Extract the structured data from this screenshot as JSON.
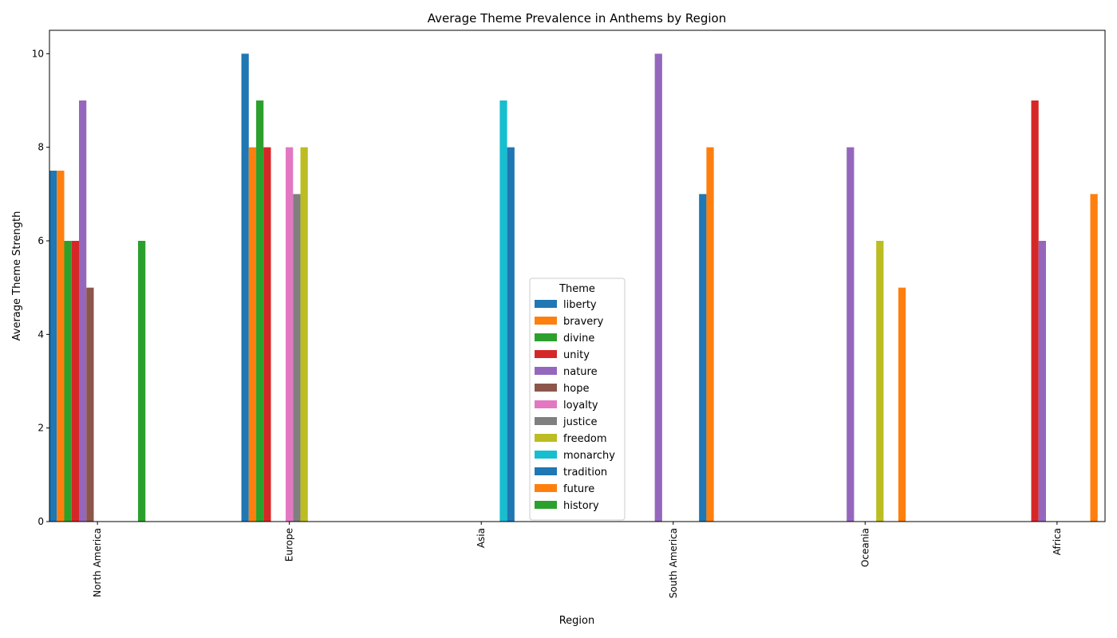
{
  "chart_data": {
    "type": "bar",
    "title": "Average Theme Prevalence in Anthems by Region",
    "xlabel": "Region",
    "ylabel": "Average Theme Strength",
    "categories": [
      "North America",
      "Europe",
      "Asia",
      "South America",
      "Oceania",
      "Africa"
    ],
    "yticks": [
      "0",
      "2",
      "4",
      "6",
      "8",
      "10"
    ],
    "ylim": [
      0,
      10.5
    ],
    "grid": false,
    "legend": {
      "title": "Theme",
      "placement": "center"
    },
    "series": [
      {
        "name": "liberty",
        "color": "#1f77b4",
        "values": [
          7.5,
          10,
          0,
          0,
          0,
          0
        ]
      },
      {
        "name": "bravery",
        "color": "#ff7f0e",
        "values": [
          7.5,
          8,
          0,
          0,
          0,
          0
        ]
      },
      {
        "name": "divine",
        "color": "#2ca02c",
        "values": [
          6,
          9,
          0,
          0,
          0,
          0
        ]
      },
      {
        "name": "unity",
        "color": "#d62728",
        "values": [
          6,
          8,
          0,
          0,
          0,
          9
        ]
      },
      {
        "name": "nature",
        "color": "#9467bd",
        "values": [
          9,
          0,
          0,
          10,
          8,
          6
        ]
      },
      {
        "name": "hope",
        "color": "#8c564b",
        "values": [
          5,
          0,
          0,
          0,
          0,
          0
        ]
      },
      {
        "name": "loyalty",
        "color": "#e377c2",
        "values": [
          0,
          8,
          0,
          0,
          0,
          0
        ]
      },
      {
        "name": "justice",
        "color": "#7f7f7f",
        "values": [
          0,
          7,
          0,
          0,
          0,
          0
        ]
      },
      {
        "name": "freedom",
        "color": "#bcbd22",
        "values": [
          0,
          8,
          0,
          0,
          6,
          0
        ]
      },
      {
        "name": "monarchy",
        "color": "#17becf",
        "values": [
          0,
          0,
          9,
          0,
          0,
          0
        ]
      },
      {
        "name": "tradition",
        "color": "#1f77b4",
        "values": [
          0,
          0,
          8,
          7,
          0,
          0
        ]
      },
      {
        "name": "future",
        "color": "#ff7f0e",
        "values": [
          0,
          0,
          0,
          8,
          5,
          7
        ]
      },
      {
        "name": "history",
        "color": "#2ca02c",
        "values": [
          6,
          0,
          0,
          0,
          0,
          0
        ]
      }
    ]
  }
}
